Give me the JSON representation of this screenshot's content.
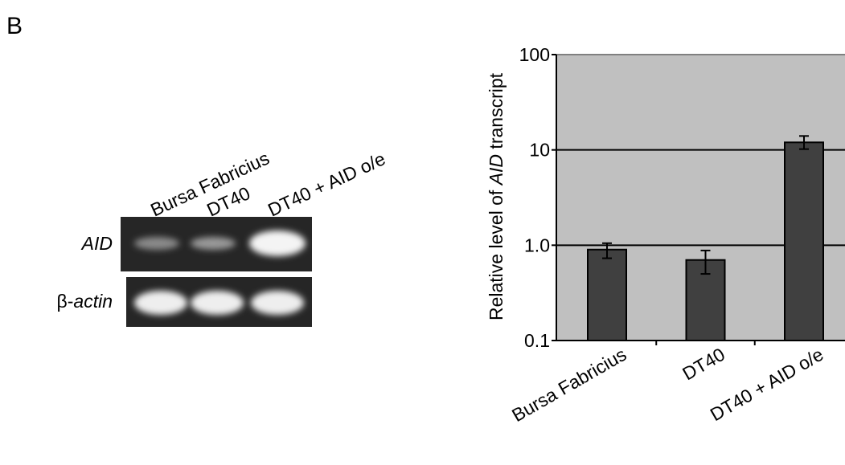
{
  "panel_label": "B",
  "gel": {
    "lanes": [
      "Bursa Fabricius",
      "DT40",
      "DT40 + AID o/e"
    ],
    "rows": [
      {
        "label": "AID"
      },
      {
        "label": [
          "β-",
          "actin"
        ]
      }
    ]
  },
  "chart_data": {
    "type": "bar",
    "y_label": [
      "Relative level of ",
      "AID",
      " transcript"
    ],
    "categories": [
      "Bursa Fabricius",
      "DT40",
      "DT40 + AID o/e"
    ],
    "values": [
      0.9,
      0.7,
      12
    ],
    "error_upper": [
      0.15,
      0.18,
      2
    ],
    "error_lower": [
      0.17,
      0.2,
      1.8
    ],
    "color": "#404040",
    "background": "#c0c0c0",
    "log_scale": true,
    "grid": true,
    "ylim": [
      0.1,
      100
    ],
    "yticks": [
      0.1,
      {
        "value": 1,
        "label": "1.0"
      },
      10,
      100
    ]
  }
}
